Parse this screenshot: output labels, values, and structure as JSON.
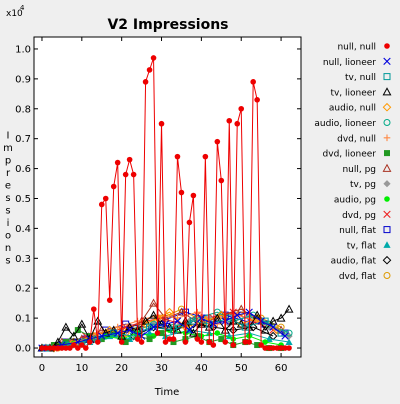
{
  "chart_data": {
    "type": "line",
    "title": "V2 Impressions",
    "xlabel": "Time",
    "ylabel": "Impressions",
    "y_exponent_label": "x10",
    "y_exponent": "4",
    "xlim": [
      -2,
      65
    ],
    "ylim": [
      -0.03,
      1.04
    ],
    "x_ticks": [
      "0",
      "10",
      "20",
      "30",
      "40",
      "50",
      "60"
    ],
    "x_tick_values": [
      0,
      10,
      20,
      30,
      40,
      50,
      60
    ],
    "y_ticks": [
      "0.0",
      "0.1",
      "0.2",
      "0.3",
      "0.4",
      "0.5",
      "0.6",
      "0.7",
      "0.8",
      "0.9",
      "1.0"
    ],
    "y_tick_values": [
      0.0,
      0.1,
      0.2,
      0.3,
      0.4,
      0.5,
      0.6,
      0.7,
      0.8,
      0.9,
      1.0
    ],
    "grid": false,
    "legend_position": "right",
    "series": [
      {
        "name": "null, null",
        "color": "#ee0000",
        "marker": "dot",
        "x": [
          0,
          1,
          2,
          3,
          4,
          5,
          6,
          7,
          8,
          9,
          10,
          11,
          12,
          13,
          14,
          15,
          16,
          17,
          18,
          19,
          20,
          21,
          22,
          23,
          24,
          25,
          26,
          27,
          28,
          29,
          30,
          31,
          32,
          33,
          34,
          35,
          36,
          37,
          38,
          39,
          40,
          41,
          42,
          43,
          44,
          45,
          46,
          47,
          48,
          49,
          50,
          51,
          52,
          53,
          54,
          55,
          56,
          57,
          58,
          59,
          60,
          61,
          62
        ],
        "y": [
          0,
          0,
          0,
          0,
          0,
          0,
          0,
          0,
          0.01,
          0,
          0.01,
          0,
          0.02,
          0.13,
          0.02,
          0.48,
          0.5,
          0.16,
          0.54,
          0.62,
          0.02,
          0.58,
          0.63,
          0.58,
          0.03,
          0.02,
          0.89,
          0.93,
          0.97,
          0.05,
          0.75,
          0.02,
          0.03,
          0.03,
          0.64,
          0.52,
          0.02,
          0.42,
          0.51,
          0.03,
          0.02,
          0.64,
          0.02,
          0.01,
          0.69,
          0.56,
          0.02,
          0.76,
          0.01,
          0.75,
          0.8,
          0.02,
          0.02,
          0.89,
          0.83,
          0.01,
          0,
          0,
          0,
          0,
          0,
          0,
          0
        ]
      },
      {
        "name": "null, lioneer",
        "color": "#0000dd",
        "marker": "x",
        "x": [
          0,
          5,
          9,
          12,
          15,
          19,
          22,
          25,
          28,
          31,
          34,
          37,
          40,
          43,
          46,
          49,
          52,
          55,
          58,
          61
        ],
        "y": [
          0,
          0.01,
          0.02,
          0.03,
          0.04,
          0.05,
          0.06,
          0.04,
          0.07,
          0.08,
          0.09,
          0.06,
          0.1,
          0.08,
          0.09,
          0.11,
          0.12,
          0.09,
          0.07,
          0.04
        ]
      },
      {
        "name": "tv, null",
        "color": "#009999",
        "marker": "square",
        "x": [
          1,
          6,
          10,
          14,
          18,
          23,
          27,
          33,
          38,
          42,
          47,
          51,
          56,
          60
        ],
        "y": [
          0,
          0.01,
          0.02,
          0.03,
          0.05,
          0.04,
          0.07,
          0.06,
          0.09,
          0.08,
          0.1,
          0.07,
          0.09,
          0.05
        ]
      },
      {
        "name": "tv, lioneer",
        "color": "#000000",
        "marker": "triangle",
        "x": [
          0,
          2,
          4,
          6,
          8,
          10,
          12,
          14,
          16,
          18,
          20,
          22,
          24,
          26,
          28,
          30,
          32,
          34,
          36,
          38,
          40,
          42,
          44,
          46,
          48,
          50,
          52,
          54,
          56,
          58,
          60,
          62
        ],
        "y": [
          0,
          0,
          0.02,
          0.07,
          0.04,
          0.08,
          0.03,
          0.09,
          0.05,
          0.06,
          0.04,
          0.07,
          0.06,
          0.09,
          0.11,
          0.08,
          0.07,
          0.06,
          0.09,
          0.05,
          0.08,
          0.07,
          0.1,
          0.06,
          0.09,
          0.08,
          0.07,
          0.11,
          0.06,
          0.09,
          0.1,
          0.13
        ]
      },
      {
        "name": "audio, null",
        "color": "#ff9900",
        "marker": "diamond",
        "x": [
          3,
          8,
          13,
          17,
          21,
          26,
          29,
          32,
          36,
          41,
          45,
          50,
          54,
          59
        ],
        "y": [
          0,
          0.02,
          0.04,
          0.06,
          0.05,
          0.08,
          0.1,
          0.12,
          0.07,
          0.09,
          0.11,
          0.08,
          0.1,
          0.06
        ]
      },
      {
        "name": "audio, lioneer",
        "color": "#00aa88",
        "marker": "circle",
        "x": [
          2,
          7,
          12,
          16,
          20,
          24,
          28,
          33,
          39,
          44,
          48,
          53,
          57,
          62
        ],
        "y": [
          0,
          0.01,
          0.03,
          0.04,
          0.05,
          0.06,
          0.08,
          0.07,
          0.1,
          0.12,
          0.09,
          0.11,
          0.08,
          0.05
        ]
      },
      {
        "name": "dvd, null",
        "color": "#ff8844",
        "marker": "plus",
        "x": [
          4,
          9,
          14,
          19,
          24,
          29,
          34,
          39,
          44,
          49,
          54,
          59
        ],
        "y": [
          0,
          0.02,
          0.05,
          0.07,
          0.09,
          0.11,
          0.1,
          0.12,
          0.08,
          0.11,
          0.09,
          0.06
        ]
      },
      {
        "name": "dvd, lioneer",
        "color": "#229922",
        "marker": "filled-square",
        "x": [
          0,
          3,
          6,
          9,
          12,
          15,
          18,
          21,
          24,
          27,
          30,
          33,
          36,
          39,
          42,
          45,
          48,
          51,
          54,
          57,
          60
        ],
        "y": [
          0,
          0.01,
          0.02,
          0.06,
          0.04,
          0.03,
          0.05,
          0.02,
          0.04,
          0.03,
          0.05,
          0.02,
          0.03,
          0.04,
          0.02,
          0.03,
          0.01,
          0.02,
          0.01,
          0,
          0
        ]
      },
      {
        "name": "null, pg",
        "color": "#aa3322",
        "marker": "triangle",
        "x": [
          1,
          5,
          10,
          15,
          20,
          25,
          28,
          31,
          35,
          40,
          45,
          50,
          55,
          60
        ],
        "y": [
          0,
          0.02,
          0.03,
          0.06,
          0.05,
          0.09,
          0.15,
          0.1,
          0.12,
          0.08,
          0.11,
          0.13,
          0.09,
          0.06
        ]
      },
      {
        "name": "tv, pg",
        "color": "#999999",
        "marker": "filled-diamond",
        "x": [
          2,
          8,
          13,
          18,
          23,
          28,
          32,
          37,
          42,
          47,
          52,
          57,
          62
        ],
        "y": [
          0,
          0.01,
          0.03,
          0.05,
          0.06,
          0.08,
          0.07,
          0.09,
          0.1,
          0.08,
          0.11,
          0.07,
          0.04
        ]
      },
      {
        "name": "audio, pg",
        "color": "#00ee00",
        "marker": "dot",
        "x": [
          0,
          4,
          8,
          12,
          16,
          20,
          24,
          28,
          32,
          36,
          40,
          44,
          48,
          52,
          56,
          60
        ],
        "y": [
          0,
          0.01,
          0.02,
          0.03,
          0.04,
          0.03,
          0.05,
          0.04,
          0.06,
          0.05,
          0.04,
          0.05,
          0.03,
          0.04,
          0.02,
          0.01
        ]
      },
      {
        "name": "dvd, pg",
        "color": "#ee2222",
        "marker": "x",
        "x": [
          3,
          7,
          11,
          16,
          21,
          26,
          30,
          35,
          39,
          43,
          48,
          53,
          58
        ],
        "y": [
          0,
          0.02,
          0.04,
          0.05,
          0.07,
          0.09,
          0.1,
          0.08,
          0.11,
          0.1,
          0.12,
          0.09,
          0.06
        ]
      },
      {
        "name": "null, flat",
        "color": "#0000cc",
        "marker": "square",
        "x": [
          1,
          6,
          11,
          16,
          21,
          26,
          30,
          36,
          41,
          46,
          51,
          56,
          61
        ],
        "y": [
          0,
          0.02,
          0.03,
          0.06,
          0.08,
          0.07,
          0.09,
          0.12,
          0.1,
          0.11,
          0.09,
          0.08,
          0.05
        ]
      },
      {
        "name": "tv, flat",
        "color": "#00aaaa",
        "marker": "filled-triangle",
        "x": [
          2,
          7,
          12,
          17,
          22,
          27,
          31,
          37,
          42,
          47,
          52,
          57,
          62
        ],
        "y": [
          0,
          0.01,
          0.02,
          0.04,
          0.03,
          0.05,
          0.04,
          0.06,
          0.05,
          0.04,
          0.05,
          0.03,
          0.02
        ]
      },
      {
        "name": "audio, flat",
        "color": "#000000",
        "marker": "diamond",
        "x": [
          3,
          8,
          13,
          18,
          23,
          28,
          33,
          38,
          43,
          48,
          53,
          58
        ],
        "y": [
          0,
          0.02,
          0.03,
          0.05,
          0.04,
          0.07,
          0.06,
          0.08,
          0.07,
          0.06,
          0.07,
          0.04
        ]
      },
      {
        "name": "dvd, flat",
        "color": "#dd9900",
        "marker": "circle",
        "x": [
          4,
          9,
          14,
          19,
          25,
          30,
          35,
          40,
          45,
          50,
          55,
          60
        ],
        "y": [
          0,
          0.01,
          0.03,
          0.06,
          0.08,
          0.1,
          0.13,
          0.09,
          0.11,
          0.12,
          0.1,
          0.07
        ]
      }
    ]
  }
}
